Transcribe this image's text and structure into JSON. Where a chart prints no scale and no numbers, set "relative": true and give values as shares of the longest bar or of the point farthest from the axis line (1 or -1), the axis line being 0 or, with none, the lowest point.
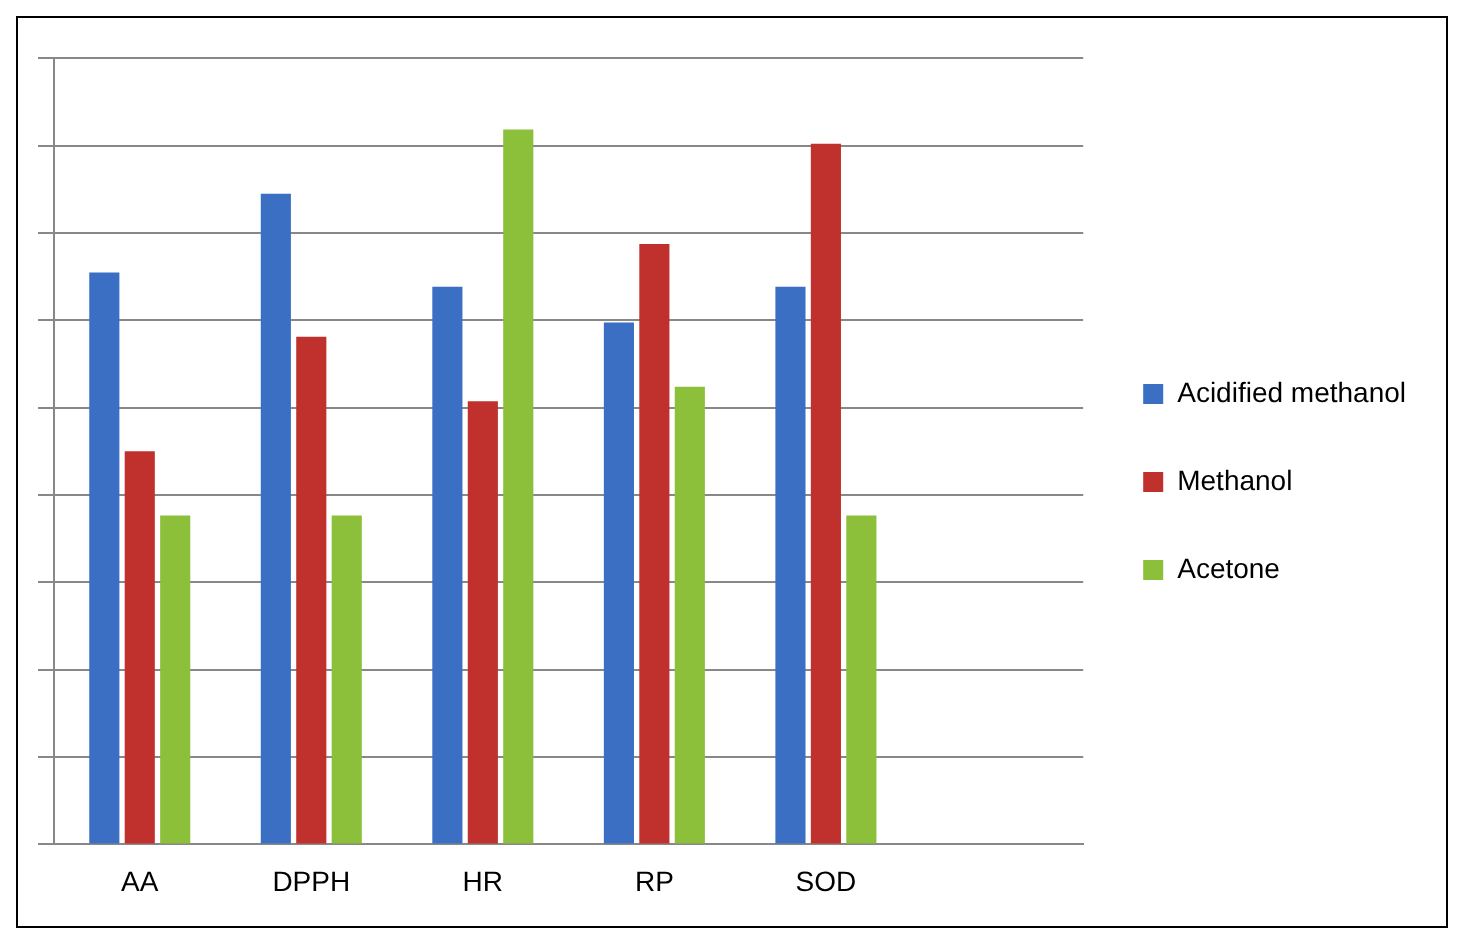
{
  "chart_data": {
    "type": "bar",
    "relative": true,
    "categories": [
      "AA",
      "DPPH",
      "HR",
      "RP",
      "SOD",
      null
    ],
    "series": [
      {
        "name": "Acidified methanol",
        "color": "#3a6fc4",
        "values": [
          0.8,
          0.91,
          0.78,
          0.73,
          0.78,
          null
        ]
      },
      {
        "name": "Methanol",
        "color": "#c0302c",
        "values": [
          0.55,
          0.71,
          0.62,
          0.84,
          0.98,
          null
        ]
      },
      {
        "name": "Acetone",
        "color": "#8cbf3a",
        "values": [
          0.46,
          0.46,
          1,
          0.64,
          0.46,
          null
        ]
      }
    ],
    "grid": "y",
    "legend": "right"
  }
}
